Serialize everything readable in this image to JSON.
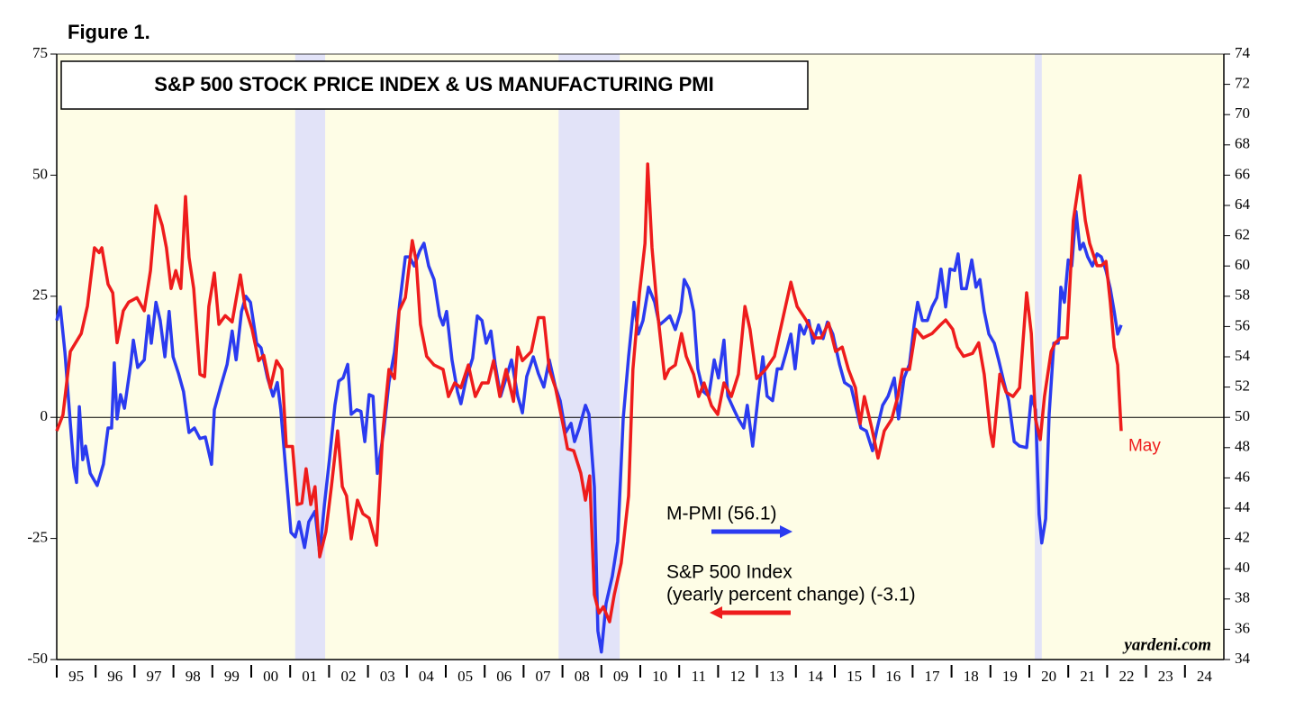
{
  "figure_label": "Figure 1.",
  "chart_data": {
    "type": "line",
    "title": "S&P 500 STOCK PRICE INDEX & US MANUFACTURING PMI",
    "source": "yardeni.com",
    "xlim": [
      1995,
      2025
    ],
    "xticks": [
      {
        "value": 1995.5,
        "label": "95"
      },
      {
        "value": 1996.5,
        "label": "96"
      },
      {
        "value": 1997.5,
        "label": "97"
      },
      {
        "value": 1998.5,
        "label": "98"
      },
      {
        "value": 1999.5,
        "label": "99"
      },
      {
        "value": 2000.5,
        "label": "00"
      },
      {
        "value": 2001.5,
        "label": "01"
      },
      {
        "value": 2002.5,
        "label": "02"
      },
      {
        "value": 2003.5,
        "label": "03"
      },
      {
        "value": 2004.5,
        "label": "04"
      },
      {
        "value": 2005.5,
        "label": "05"
      },
      {
        "value": 2006.5,
        "label": "06"
      },
      {
        "value": 2007.5,
        "label": "07"
      },
      {
        "value": 2008.5,
        "label": "08"
      },
      {
        "value": 2009.5,
        "label": "09"
      },
      {
        "value": 2010.5,
        "label": "10"
      },
      {
        "value": 2011.5,
        "label": "11"
      },
      {
        "value": 2012.5,
        "label": "12"
      },
      {
        "value": 2013.5,
        "label": "13"
      },
      {
        "value": 2014.5,
        "label": "14"
      },
      {
        "value": 2015.5,
        "label": "15"
      },
      {
        "value": 2016.5,
        "label": "16"
      },
      {
        "value": 2017.5,
        "label": "17"
      },
      {
        "value": 2018.5,
        "label": "18"
      },
      {
        "value": 2019.5,
        "label": "19"
      },
      {
        "value": 2020.5,
        "label": "20"
      },
      {
        "value": 2021.5,
        "label": "21"
      },
      {
        "value": 2022.5,
        "label": "22"
      },
      {
        "value": 2023.5,
        "label": "23"
      },
      {
        "value": 2024.5,
        "label": "24"
      }
    ],
    "ylim": [
      -50,
      75
    ],
    "yticks": [
      -50,
      -25,
      0,
      25,
      50,
      75
    ],
    "y2lim": [
      34,
      74
    ],
    "y2ticks": [
      34,
      36,
      38,
      40,
      42,
      44,
      46,
      48,
      50,
      52,
      54,
      56,
      58,
      60,
      62,
      64,
      66,
      68,
      70,
      72,
      74
    ],
    "background_color": "#fefde6",
    "recession_color": "#e2e3f8",
    "recessions": [
      [
        2001.13,
        2001.9
      ],
      [
        2007.9,
        2009.47
      ],
      [
        2020.14,
        2020.32
      ]
    ],
    "series": [
      {
        "name": "M-PMI (56.1)",
        "color": "#2b3bf0",
        "axis": "y2",
        "x": [
          1995.0,
          1995.09,
          1995.21,
          1995.35,
          1995.44,
          1995.51,
          1995.58,
          1995.67,
          1995.74,
          1995.86,
          1996.04,
          1996.2,
          1996.32,
          1996.41,
          1996.48,
          1996.55,
          1996.64,
          1996.74,
          1996.9,
          1996.97,
          1997.08,
          1997.25,
          1997.36,
          1997.43,
          1997.55,
          1997.66,
          1997.78,
          1997.89,
          1997.99,
          1998.13,
          1998.26,
          1998.4,
          1998.54,
          1998.68,
          1998.82,
          1998.98,
          1999.05,
          1999.21,
          1999.38,
          1999.51,
          1999.61,
          1999.75,
          1999.86,
          1999.98,
          2000.14,
          2000.25,
          2000.42,
          2000.56,
          2000.67,
          2000.76,
          2000.9,
          2001.02,
          2001.13,
          2001.23,
          2001.37,
          2001.48,
          2001.64,
          2001.76,
          2001.88,
          2002.01,
          2002.15,
          2002.25,
          2002.36,
          2002.48,
          2002.57,
          2002.71,
          2002.82,
          2002.92,
          2003.03,
          2003.13,
          2003.24,
          2003.4,
          2003.54,
          2003.68,
          2003.82,
          2003.96,
          2004.07,
          2004.19,
          2004.33,
          2004.44,
          2004.56,
          2004.7,
          2004.84,
          2004.93,
          2005.02,
          2005.16,
          2005.3,
          2005.39,
          2005.53,
          2005.69,
          2005.81,
          2005.93,
          2006.04,
          2006.16,
          2006.27,
          2006.41,
          2006.55,
          2006.69,
          2006.85,
          2006.97,
          2007.08,
          2007.25,
          2007.38,
          2007.52,
          2007.66,
          2007.82,
          2007.94,
          2008.08,
          2008.22,
          2008.31,
          2008.43,
          2008.59,
          2008.68,
          2008.82,
          2008.91,
          2009.0,
          2009.12,
          2009.28,
          2009.42,
          2009.56,
          2009.7,
          2009.84,
          2009.95,
          2010.07,
          2010.21,
          2010.37,
          2010.49,
          2010.63,
          2010.76,
          2010.9,
          2011.04,
          2011.13,
          2011.25,
          2011.37,
          2011.48,
          2011.62,
          2011.76,
          2011.9,
          2012.01,
          2012.15,
          2012.25,
          2012.41,
          2012.52,
          2012.66,
          2012.75,
          2012.89,
          2013.03,
          2013.15,
          2013.26,
          2013.4,
          2013.52,
          2013.63,
          2013.75,
          2013.87,
          2013.98,
          2014.1,
          2014.21,
          2014.33,
          2014.44,
          2014.58,
          2014.7,
          2014.81,
          2014.95,
          2015.12,
          2015.25,
          2015.42,
          2015.53,
          2015.67,
          2015.81,
          2015.97,
          2016.09,
          2016.23,
          2016.37,
          2016.53,
          2016.64,
          2016.78,
          2016.92,
          2017.04,
          2017.13,
          2017.25,
          2017.38,
          2017.5,
          2017.62,
          2017.73,
          2017.85,
          2017.96,
          2018.08,
          2018.17,
          2018.26,
          2018.38,
          2018.52,
          2018.63,
          2018.73,
          2018.84,
          2018.96,
          2019.1,
          2019.21,
          2019.35,
          2019.47,
          2019.61,
          2019.75,
          2019.93,
          2020.05,
          2020.16,
          2020.25,
          2020.32,
          2020.42,
          2020.51,
          2020.63,
          2020.74,
          2020.81,
          2020.9,
          2021.0,
          2021.09,
          2021.2,
          2021.3,
          2021.39,
          2021.5,
          2021.62,
          2021.74,
          2021.85,
          2021.97,
          2022.08,
          2022.18,
          2022.27,
          2022.36
        ],
        "values": [
          56.4,
          57.3,
          54.3,
          49.6,
          46.7,
          45.7,
          50.7,
          47.2,
          48.1,
          46.3,
          45.5,
          46.9,
          49.3,
          49.3,
          53.6,
          49.9,
          51.5,
          50.6,
          53.5,
          55.1,
          53.3,
          53.8,
          56.7,
          54.9,
          57.6,
          56.4,
          54.0,
          57.0,
          54.0,
          52.9,
          51.7,
          49.0,
          49.3,
          48.6,
          48.7,
          46.9,
          50.5,
          52.0,
          53.5,
          55.7,
          53.8,
          57.0,
          58.0,
          57.6,
          54.9,
          54.6,
          52.6,
          51.4,
          52.3,
          50.5,
          46.1,
          42.4,
          42.1,
          43.1,
          41.4,
          43.1,
          43.8,
          41.0,
          44.2,
          47.2,
          50.8,
          52.4,
          52.6,
          53.5,
          50.2,
          50.5,
          50.4,
          48.4,
          51.5,
          51.4,
          46.3,
          49.0,
          52.3,
          54.3,
          57.6,
          60.6,
          60.6,
          60.0,
          61.0,
          61.5,
          60.0,
          59.1,
          56.7,
          56.1,
          57.0,
          53.8,
          51.7,
          50.9,
          52.6,
          53.9,
          56.7,
          56.4,
          54.9,
          55.7,
          53.5,
          51.4,
          52.6,
          53.8,
          51.4,
          50.3,
          52.7,
          54.0,
          52.9,
          52.0,
          53.8,
          52.0,
          51.1,
          49.0,
          49.6,
          48.4,
          49.3,
          50.8,
          50.2,
          45.4,
          35.9,
          34.5,
          37.7,
          39.5,
          41.8,
          49.9,
          54.0,
          57.6,
          55.5,
          56.4,
          58.6,
          57.6,
          56.1,
          56.4,
          56.7,
          55.8,
          57.0,
          59.1,
          58.5,
          57.0,
          53.2,
          51.7,
          51.4,
          53.8,
          52.6,
          55.1,
          51.4,
          50.5,
          49.9,
          49.3,
          50.8,
          48.1,
          51.4,
          54.0,
          51.4,
          51.1,
          53.2,
          53.2,
          54.3,
          55.5,
          53.2,
          56.1,
          55.5,
          56.4,
          54.9,
          56.1,
          55.2,
          56.3,
          55.5,
          53.5,
          52.3,
          52.0,
          50.8,
          49.3,
          49.1,
          47.8,
          49.3,
          50.8,
          51.4,
          52.6,
          49.9,
          52.6,
          53.5,
          56.1,
          57.6,
          56.4,
          56.4,
          57.3,
          57.9,
          59.8,
          57.3,
          59.8,
          59.7,
          60.8,
          58.5,
          58.5,
          60.4,
          58.6,
          59.1,
          57.0,
          55.5,
          54.9,
          53.8,
          52.3,
          51.1,
          48.4,
          48.1,
          48.0,
          51.4,
          50.5,
          43.6,
          41.7,
          43.3,
          50.2,
          54.9,
          54.9,
          58.6,
          57.6,
          60.4,
          60.0,
          63.6,
          61.1,
          61.5,
          60.6,
          60.0,
          60.8,
          60.6,
          59.7,
          58.5,
          57.0,
          55.5,
          56.1
        ]
      },
      {
        "name": "S&P 500 Index",
        "note": "(yearly percent change) (-3.1)",
        "end_label": "May",
        "color": "#ee1c1c",
        "axis": "y",
        "x": [
          1995.0,
          1995.16,
          1995.35,
          1995.63,
          1995.79,
          1995.97,
          1996.09,
          1996.16,
          1996.32,
          1996.44,
          1996.55,
          1996.71,
          1996.85,
          1997.06,
          1997.25,
          1997.41,
          1997.55,
          1997.71,
          1997.82,
          1997.94,
          1998.06,
          1998.19,
          1998.31,
          1998.4,
          1998.52,
          1998.68,
          1998.8,
          1998.91,
          1999.05,
          1999.17,
          1999.33,
          1999.51,
          1999.72,
          1999.84,
          2000.02,
          2000.19,
          2000.32,
          2000.49,
          2000.65,
          2000.79,
          2000.9,
          2001.06,
          2001.18,
          2001.3,
          2001.41,
          2001.53,
          2001.64,
          2001.76,
          2001.92,
          2002.06,
          2002.22,
          2002.34,
          2002.45,
          2002.57,
          2002.73,
          2002.87,
          2003.03,
          2003.22,
          2003.38,
          2003.54,
          2003.68,
          2003.8,
          2003.96,
          2004.14,
          2004.24,
          2004.35,
          2004.51,
          2004.7,
          2004.93,
          2005.07,
          2005.23,
          2005.39,
          2005.58,
          2005.76,
          2005.93,
          2006.09,
          2006.23,
          2006.39,
          2006.55,
          2006.74,
          2006.85,
          2006.97,
          2007.2,
          2007.38,
          2007.52,
          2007.66,
          2007.82,
          2008.01,
          2008.13,
          2008.29,
          2008.47,
          2008.59,
          2008.7,
          2008.82,
          2008.94,
          2009.05,
          2009.21,
          2009.33,
          2009.51,
          2009.7,
          2009.81,
          2009.98,
          2010.12,
          2010.19,
          2010.3,
          2010.44,
          2010.63,
          2010.74,
          2010.9,
          2011.06,
          2011.18,
          2011.37,
          2011.5,
          2011.64,
          2011.83,
          2011.99,
          2012.15,
          2012.34,
          2012.52,
          2012.69,
          2012.82,
          2012.99,
          2013.22,
          2013.45,
          2013.68,
          2013.87,
          2014.03,
          2014.26,
          2014.49,
          2014.65,
          2014.84,
          2015.02,
          2015.19,
          2015.35,
          2015.53,
          2015.65,
          2015.76,
          2015.95,
          2016.11,
          2016.27,
          2016.46,
          2016.62,
          2016.74,
          2016.92,
          2017.08,
          2017.27,
          2017.5,
          2017.73,
          2017.85,
          2018.03,
          2018.15,
          2018.31,
          2018.54,
          2018.7,
          2018.84,
          2019.0,
          2019.07,
          2019.24,
          2019.4,
          2019.58,
          2019.75,
          2019.93,
          2020.05,
          2020.16,
          2020.28,
          2020.39,
          2020.56,
          2020.67,
          2020.81,
          2020.97,
          2021.13,
          2021.3,
          2021.44,
          2021.55,
          2021.74,
          2021.85,
          2021.97,
          2022.08,
          2022.18,
          2022.27,
          2022.36
        ],
        "values": [
          -2.8,
          0.5,
          13.6,
          17.3,
          23,
          35,
          34,
          35,
          27.5,
          25.7,
          15.4,
          22,
          23.8,
          24.7,
          22,
          30.3,
          43.7,
          39.6,
          35,
          26.6,
          30.3,
          26.6,
          45.6,
          33,
          26.6,
          8.9,
          8.4,
          22.9,
          29.8,
          19.2,
          21,
          19.7,
          29.4,
          22.9,
          18.2,
          11.7,
          12.8,
          6.1,
          11.7,
          9.9,
          -6,
          -6,
          -18,
          -17.7,
          -10.6,
          -18,
          -14.3,
          -28.8,
          -23.6,
          -14.3,
          -2.8,
          -14.3,
          -16.2,
          -25.1,
          -17.1,
          -19.9,
          -20.8,
          -26.4,
          -3.2,
          9.9,
          8,
          22,
          24.7,
          36.5,
          32.2,
          19.2,
          12.6,
          10.8,
          9.9,
          4.3,
          7.1,
          6.1,
          10.8,
          4.3,
          7.1,
          7.1,
          11.7,
          4.3,
          9.9,
          3.3,
          14.5,
          11.7,
          13.6,
          20.6,
          20.6,
          9.9,
          6.1,
          -1.3,
          -6.5,
          -6.9,
          -11.5,
          -17.1,
          -12.1,
          -36.6,
          -40.4,
          -39.1,
          -42.2,
          -36.6,
          -30.1,
          -16.2,
          9.9,
          25.7,
          35.9,
          52.3,
          35,
          22,
          8,
          9.9,
          10.8,
          17.3,
          12.6,
          8.9,
          4.3,
          7.1,
          2.4,
          0.6,
          7.1,
          4.3,
          8.9,
          22.9,
          18.2,
          8,
          9.9,
          12.6,
          21,
          27.9,
          22.9,
          20.1,
          16.4,
          16.4,
          19.5,
          13.6,
          14.5,
          9.9,
          6.1,
          -1.3,
          4.3,
          -2.2,
          -8.4,
          -2.8,
          -0.4,
          4.3,
          9.9,
          9.9,
          18.2,
          16.4,
          17.3,
          19.2,
          20.1,
          18.2,
          14.5,
          12.6,
          13.2,
          15.4,
          8.9,
          -3.2,
          -6,
          8.9,
          5.2,
          4.3,
          6.1,
          25.7,
          17.3,
          -0.4,
          -4.6,
          4.3,
          13.6,
          15.4,
          16.4,
          16.4,
          40.6,
          49.9,
          40.6,
          35.9,
          31.3,
          31.3,
          32.2,
          23.8,
          14.5,
          10.8,
          -2.8
        ]
      }
    ]
  }
}
